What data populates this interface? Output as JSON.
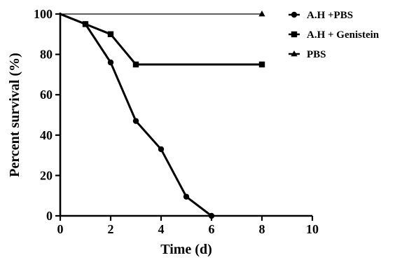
{
  "chart_data": {
    "type": "line",
    "xlabel": "Time (d)",
    "ylabel": "Percent survival (%)",
    "xlim": [
      0,
      10
    ],
    "ylim": [
      0,
      100
    ],
    "xticks": [
      0,
      2,
      4,
      6,
      8,
      10
    ],
    "yticks": [
      0,
      20,
      40,
      60,
      80,
      100
    ],
    "grid": false,
    "legend_position": "top-right",
    "series": [
      {
        "name": "A.H +PBS",
        "marker": "circle",
        "line_width": 3,
        "x": [
          0,
          1,
          2,
          3,
          4,
          5,
          6
        ],
        "y": [
          100,
          95,
          76,
          47,
          33,
          9.5,
          0
        ]
      },
      {
        "name": "A.H + Genistein",
        "marker": "square",
        "line_width": 3,
        "x": [
          0,
          1,
          2,
          3,
          8
        ],
        "y": [
          100,
          95,
          90,
          75,
          75
        ]
      },
      {
        "name": "PBS",
        "marker": "triangle",
        "line_width": 1.2,
        "x": [
          0,
          8
        ],
        "y": [
          100,
          100
        ]
      }
    ]
  }
}
